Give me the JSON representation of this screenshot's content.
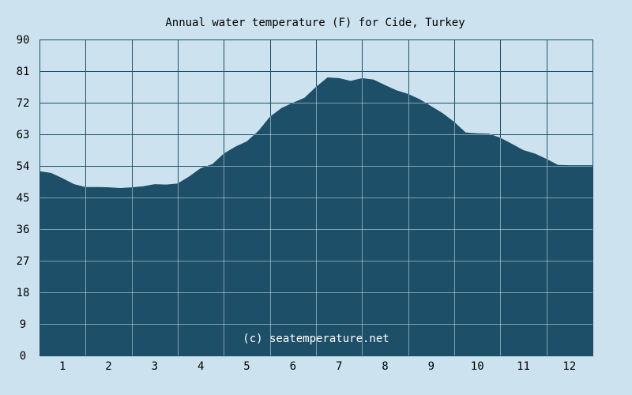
{
  "chart_data": {
    "type": "area",
    "title": "Annual water temperature (F) for Cide, Turkey",
    "watermark": "(c) seatemperature.net",
    "xlabel": "",
    "ylabel": "",
    "x_ticks": [
      "1",
      "2",
      "3",
      "4",
      "5",
      "6",
      "7",
      "8",
      "9",
      "10",
      "11",
      "12"
    ],
    "y_ticks": [
      "0",
      "9",
      "18",
      "27",
      "36",
      "45",
      "54",
      "63",
      "72",
      "81",
      "90"
    ],
    "ylim": [
      0,
      90
    ],
    "xlim": [
      0,
      12
    ],
    "grid": true,
    "x": [
      0.0,
      0.25,
      0.5,
      0.75,
      1.0,
      1.25,
      1.5,
      1.75,
      2.0,
      2.25,
      2.5,
      2.75,
      3.0,
      3.25,
      3.5,
      3.75,
      4.0,
      4.25,
      4.5,
      4.75,
      5.0,
      5.25,
      5.5,
      5.75,
      6.0,
      6.25,
      6.5,
      6.75,
      7.0,
      7.25,
      7.5,
      7.75,
      8.0,
      8.25,
      8.5,
      8.75,
      9.0,
      9.25,
      9.5,
      9.75,
      10.0,
      10.25,
      10.5,
      10.75,
      11.0,
      11.25,
      11.5,
      11.75,
      12.0
    ],
    "values": [
      52.5,
      52.0,
      50.5,
      48.8,
      48.0,
      48.0,
      47.9,
      47.7,
      47.9,
      48.2,
      48.8,
      48.7,
      49.0,
      51.0,
      53.4,
      54.5,
      57.5,
      59.5,
      61.0,
      64.0,
      68.0,
      70.5,
      72.0,
      73.4,
      76.5,
      79.2,
      79.0,
      78.2,
      79.0,
      78.6,
      77.0,
      75.5,
      74.5,
      73.0,
      71.0,
      69.0,
      66.5,
      63.5,
      63.3,
      63.2,
      62.0,
      60.3,
      58.5,
      57.5,
      56.0,
      54.3,
      54.2,
      54.2,
      54.2
    ],
    "colors": {
      "background": "#cce3ef",
      "fill": "#1e4f68",
      "grid_light": "#cce3ef",
      "grid_dark": "#1e4f68"
    }
  }
}
